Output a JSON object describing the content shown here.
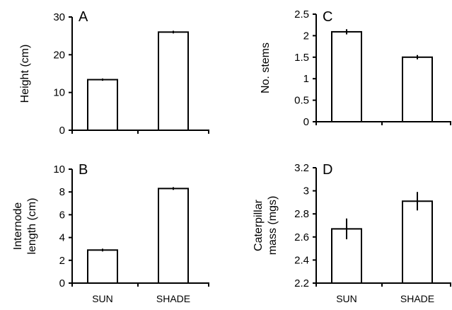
{
  "chart_data": [
    {
      "panel": "A",
      "type": "bar",
      "categories": [
        "SUN",
        "SHADE"
      ],
      "series": [
        {
          "values": [
            13.4,
            26.0
          ],
          "errors": [
            0.3,
            0.35
          ]
        }
      ],
      "ylabel_lines": [
        "Height (cm)"
      ],
      "ylim": [
        0,
        30
      ],
      "yticks": [
        0,
        10,
        20,
        30
      ],
      "ytick_labels": [
        "0",
        "10",
        "20",
        "30"
      ],
      "show_category_labels": false
    },
    {
      "panel": "B",
      "type": "bar",
      "categories": [
        "SUN",
        "SHADE"
      ],
      "series": [
        {
          "values": [
            2.9,
            8.3
          ],
          "errors": [
            0.12,
            0.12
          ]
        }
      ],
      "ylabel_lines": [
        "Internode",
        "length (cm)"
      ],
      "ylim": [
        0,
        10
      ],
      "yticks": [
        0,
        2,
        4,
        6,
        8,
        10
      ],
      "ytick_labels": [
        "0",
        "2",
        "4",
        "6",
        "8",
        "10"
      ],
      "show_category_labels": true
    },
    {
      "panel": "C",
      "type": "bar",
      "categories": [
        "SUN",
        "SHADE"
      ],
      "series": [
        {
          "values": [
            2.09,
            1.5
          ],
          "errors": [
            0.06,
            0.05
          ]
        }
      ],
      "ylabel_lines": [
        "No. stems"
      ],
      "ylim": [
        0,
        2.5
      ],
      "yticks": [
        0,
        0.5,
        1,
        1.5,
        2,
        2.5
      ],
      "ytick_labels": [
        "0",
        "0.5",
        "1",
        "1.5",
        "2",
        "2.5"
      ],
      "show_category_labels": false
    },
    {
      "panel": "D",
      "type": "bar",
      "categories": [
        "SUN",
        "SHADE"
      ],
      "series": [
        {
          "values": [
            2.67,
            2.91
          ],
          "errors": [
            0.09,
            0.08
          ]
        }
      ],
      "ylabel_lines": [
        "Caterpillar",
        "mass (mgs)"
      ],
      "ylim": [
        2.2,
        3.2
      ],
      "yticks": [
        2.2,
        2.4,
        2.6,
        2.8,
        3.0,
        3.2
      ],
      "ytick_labels": [
        "2.2",
        "2.4",
        "2.6",
        "2.8",
        "3",
        "3.2"
      ],
      "show_category_labels": true
    }
  ]
}
